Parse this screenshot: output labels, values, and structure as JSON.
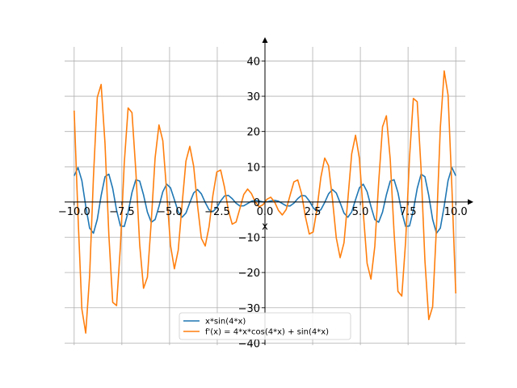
{
  "chart_data": {
    "type": "line",
    "xlabel": "x",
    "ylabel": "",
    "xlim": [
      -10.5,
      10.5
    ],
    "ylim": [
      -40,
      40
    ],
    "grid": true,
    "legend_position": "bottom-center",
    "x_ticks": [
      -10.0,
      -7.5,
      -5.0,
      -2.5,
      0.0,
      2.5,
      5.0,
      7.5,
      10.0
    ],
    "x_tick_labels": [
      "−10.0",
      "−7.5",
      "−5.0",
      "−2.5",
      "0.0",
      "2.5",
      "5.0",
      "7.5",
      "10.0"
    ],
    "y_ticks": [
      -40,
      -30,
      -20,
      -10,
      0,
      10,
      20,
      30,
      40
    ],
    "y_tick_labels": [
      "−40",
      "−30",
      "−20",
      "−10",
      "0",
      "10",
      "20",
      "30",
      "40"
    ],
    "series": [
      {
        "name": "x*sin(4*x)",
        "color": "#1f77b4",
        "expression": "x*sin(4*x)",
        "x_range": [
          -10,
          10
        ],
        "samples": 100
      },
      {
        "name": "f'(x) = 4*x*cos(4*x) + sin(4*x)",
        "color": "#ff7f0e",
        "expression": "4*x*cos(4*x) + sin(4*x)",
        "x_range": [
          -10,
          10
        ],
        "samples": 100
      }
    ]
  }
}
